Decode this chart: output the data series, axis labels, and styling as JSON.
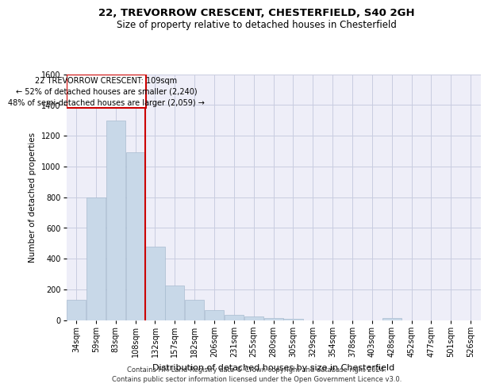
{
  "title1": "22, TREVORROW CRESCENT, CHESTERFIELD, S40 2GH",
  "title2": "Size of property relative to detached houses in Chesterfield",
  "xlabel": "Distribution of detached houses by size in Chesterfield",
  "ylabel": "Number of detached properties",
  "categories": [
    "34sqm",
    "59sqm",
    "83sqm",
    "108sqm",
    "132sqm",
    "157sqm",
    "182sqm",
    "206sqm",
    "231sqm",
    "255sqm",
    "280sqm",
    "305sqm",
    "329sqm",
    "354sqm",
    "378sqm",
    "403sqm",
    "428sqm",
    "452sqm",
    "477sqm",
    "501sqm",
    "526sqm"
  ],
  "values": [
    130,
    800,
    1300,
    1090,
    480,
    225,
    130,
    65,
    35,
    22,
    15,
    10,
    0,
    0,
    0,
    0,
    12,
    0,
    0,
    0,
    0
  ],
  "bar_color": "#c8d8e8",
  "bar_edge_color": "#a8bcd0",
  "grid_color": "#c8cce0",
  "background_color": "#eeeef8",
  "annotation_box_color": "#cc0000",
  "vline_color": "#cc0000",
  "vline_index": 3,
  "annotation_text_line1": "22 TREVORROW CRESCENT: 109sqm",
  "annotation_text_line2": "← 52% of detached houses are smaller (2,240)",
  "annotation_text_line3": "48% of semi-detached houses are larger (2,059) →",
  "footer1": "Contains HM Land Registry data © Crown copyright and database right 2024.",
  "footer2": "Contains public sector information licensed under the Open Government Licence v3.0.",
  "ylim": [
    0,
    1600
  ],
  "yticks": [
    0,
    200,
    400,
    600,
    800,
    1000,
    1200,
    1400,
    1600
  ],
  "title1_fontsize": 9.5,
  "title2_fontsize": 8.5,
  "xlabel_fontsize": 8,
  "ylabel_fontsize": 7.5,
  "tick_fontsize": 7,
  "annotation_fontsize": 7,
  "footer_fontsize": 6
}
